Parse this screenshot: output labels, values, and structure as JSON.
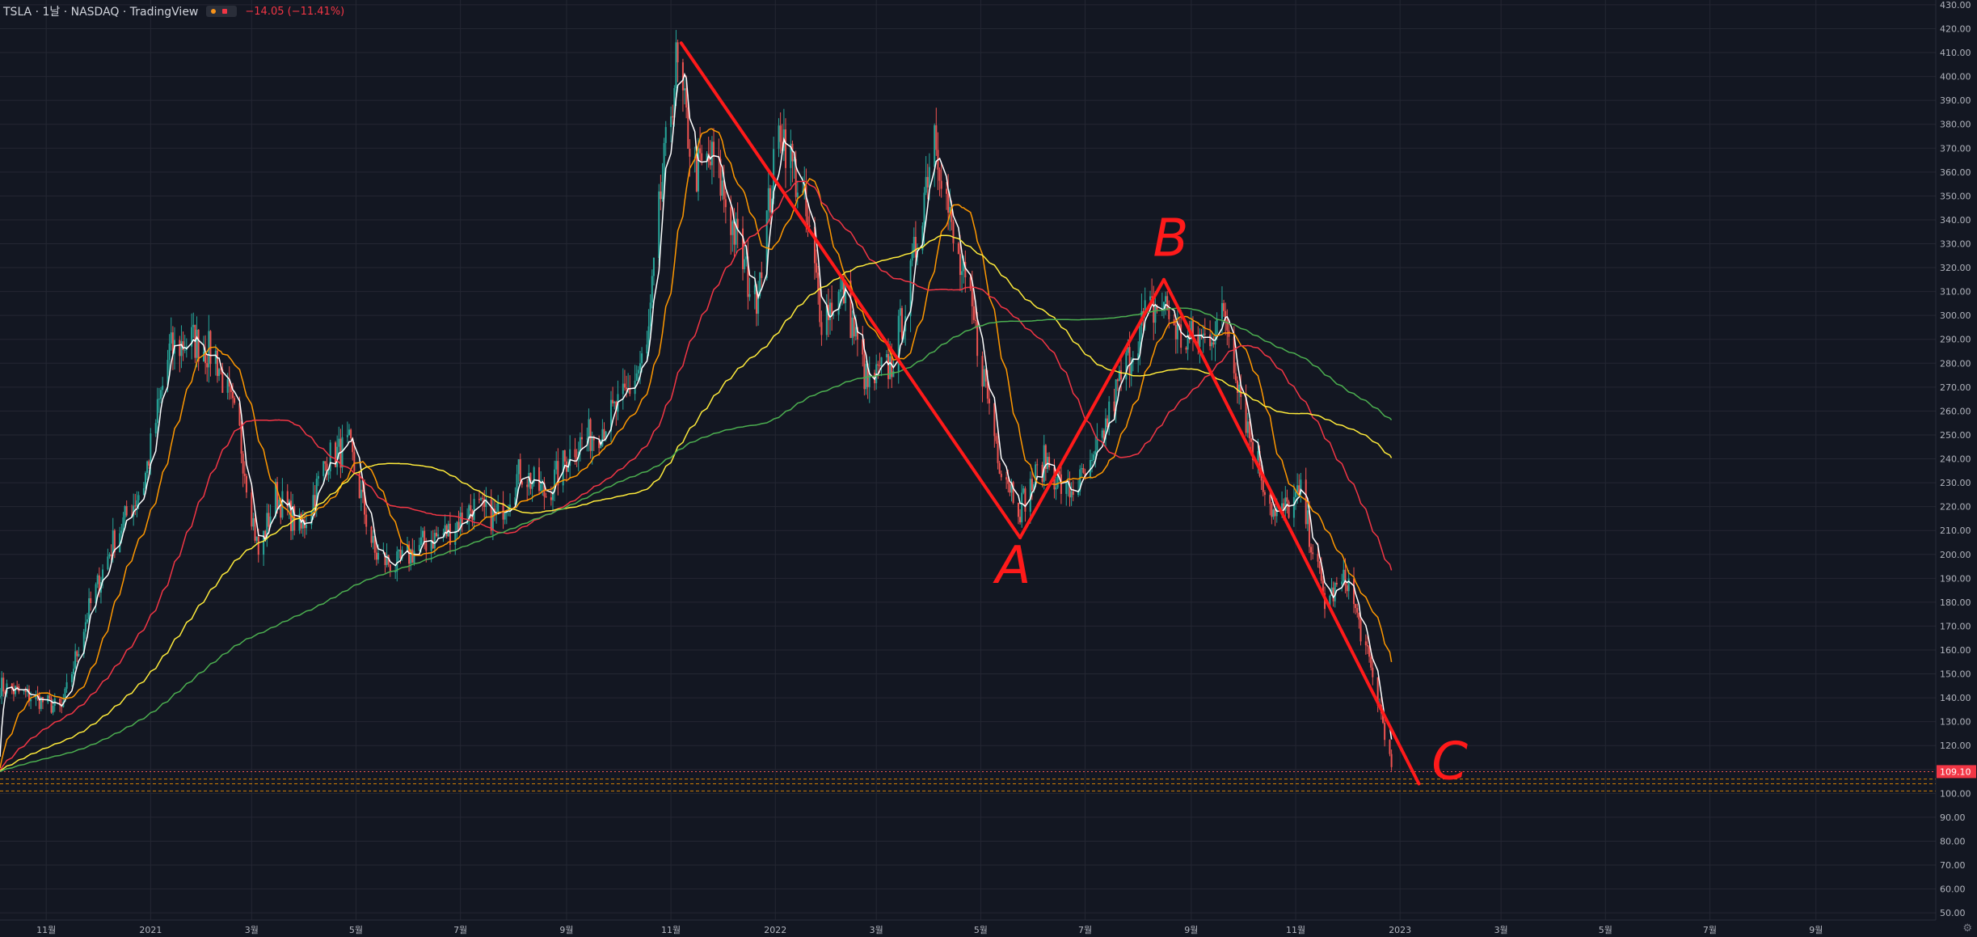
{
  "header": {
    "symbol_line": "TSLA · 1날 · NASDAQ · TradingView",
    "change": "−14.05 (−11.41%)"
  },
  "chart_data": {
    "type": "candlestick",
    "y_ticks": [
      50,
      60,
      70,
      80,
      90,
      100,
      110,
      120,
      130,
      140,
      150,
      160,
      170,
      180,
      190,
      200,
      210,
      220,
      230,
      240,
      250,
      260,
      270,
      280,
      290,
      300,
      310,
      320,
      330,
      340,
      350,
      360,
      370,
      380,
      390,
      400,
      410,
      420,
      430
    ],
    "y_tick_labels": [
      "50.00",
      "60.00",
      "70.00",
      "80.00",
      "90.00",
      "100.00",
      "110.00",
      "120.00",
      "130.00",
      "140.00",
      "150.00",
      "160.00",
      "170.00",
      "180.00",
      "190.00",
      "200.00",
      "210.00",
      "220.00",
      "230.00",
      "240.00",
      "250.00",
      "260.00",
      "270.00",
      "280.00",
      "290.00",
      "300.00",
      "310.00",
      "320.00",
      "330.00",
      "340.00",
      "350.00",
      "360.00",
      "370.00",
      "380.00",
      "390.00",
      "400.00",
      "410.00",
      "420.00",
      "430.00"
    ],
    "ylim": [
      47,
      432
    ],
    "x_ticks": [
      {
        "label": "11월",
        "date": "2020-11-01"
      },
      {
        "label": "2021",
        "date": "2021-01-01"
      },
      {
        "label": "3월",
        "date": "2021-03-01"
      },
      {
        "label": "5월",
        "date": "2021-05-01"
      },
      {
        "label": "7월",
        "date": "2021-07-01"
      },
      {
        "label": "9월",
        "date": "2021-09-01"
      },
      {
        "label": "11월",
        "date": "2021-11-01"
      },
      {
        "label": "2022",
        "date": "2022-01-01"
      },
      {
        "label": "3월",
        "date": "2022-03-01"
      },
      {
        "label": "5월",
        "date": "2022-05-01"
      },
      {
        "label": "7월",
        "date": "2022-07-01"
      },
      {
        "label": "9월",
        "date": "2022-09-01"
      },
      {
        "label": "11월",
        "date": "2022-11-01"
      },
      {
        "label": "2023",
        "date": "2023-01-01"
      },
      {
        "label": "3월",
        "date": "2023-03-01"
      },
      {
        "label": "5월",
        "date": "2023-05-01"
      },
      {
        "label": "7월",
        "date": "2023-07-01"
      },
      {
        "label": "9월",
        "date": "2023-09-01"
      }
    ],
    "xlim": [
      "2020-10-05",
      "2023-11-10"
    ],
    "price_path": [
      [
        "2020-10-05",
        145
      ],
      [
        "2020-10-25",
        140
      ],
      [
        "2020-11-10",
        135
      ],
      [
        "2020-11-25",
        175
      ],
      [
        "2020-12-10",
        205
      ],
      [
        "2020-12-28",
        230
      ],
      [
        "2021-01-12",
        285
      ],
      [
        "2021-01-25",
        290
      ],
      [
        "2021-02-08",
        283
      ],
      [
        "2021-02-22",
        250
      ],
      [
        "2021-03-05",
        200
      ],
      [
        "2021-03-15",
        225
      ],
      [
        "2021-03-30",
        210
      ],
      [
        "2021-04-14",
        240
      ],
      [
        "2021-04-27",
        245
      ],
      [
        "2021-05-12",
        200
      ],
      [
        "2021-05-24",
        195
      ],
      [
        "2021-06-10",
        205
      ],
      [
        "2021-06-25",
        210
      ],
      [
        "2021-07-08",
        220
      ],
      [
        "2021-07-22",
        215
      ],
      [
        "2021-08-05",
        235
      ],
      [
        "2021-08-20",
        225
      ],
      [
        "2021-09-05",
        245
      ],
      [
        "2021-09-20",
        252
      ],
      [
        "2021-10-05",
        265
      ],
      [
        "2021-10-18",
        285
      ],
      [
        "2021-10-26",
        350
      ],
      [
        "2021-11-04",
        405
      ],
      [
        "2021-11-15",
        360
      ],
      [
        "2021-11-26",
        365
      ],
      [
        "2021-12-08",
        335
      ],
      [
        "2021-12-20",
        305
      ],
      [
        "2021-12-30",
        355
      ],
      [
        "2022-01-04",
        380
      ],
      [
        "2022-01-18",
        345
      ],
      [
        "2022-01-28",
        300
      ],
      [
        "2022-02-10",
        310
      ],
      [
        "2022-02-24",
        270
      ],
      [
        "2022-03-10",
        280
      ],
      [
        "2022-03-20",
        310
      ],
      [
        "2022-04-04",
        380
      ],
      [
        "2022-04-15",
        330
      ],
      [
        "2022-04-26",
        300
      ],
      [
        "2022-05-12",
        240
      ],
      [
        "2022-05-24",
        220
      ],
      [
        "2022-06-08",
        240
      ],
      [
        "2022-06-20",
        225
      ],
      [
        "2022-07-05",
        235
      ],
      [
        "2022-07-20",
        270
      ],
      [
        "2022-08-05",
        300
      ],
      [
        "2022-08-16",
        305
      ],
      [
        "2022-08-26",
        290
      ],
      [
        "2022-09-08",
        290
      ],
      [
        "2022-09-21",
        300
      ],
      [
        "2022-10-05",
        250
      ],
      [
        "2022-10-20",
        215
      ],
      [
        "2022-11-04",
        225
      ],
      [
        "2022-11-18",
        180
      ],
      [
        "2022-12-01",
        190
      ],
      [
        "2022-12-12",
        160
      ],
      [
        "2022-12-22",
        130
      ],
      [
        "2022-12-27",
        110
      ]
    ],
    "moving_averages": [
      {
        "color": "#ffffff",
        "window": 5
      },
      {
        "color": "#ff9800",
        "window": 20
      },
      {
        "color": "#f23645",
        "window": 60
      },
      {
        "color": "#ffeb3b",
        "window": 120
      },
      {
        "color": "#4caf50",
        "window": 224
      }
    ],
    "last_price": {
      "value": 109.1,
      "label": "109.10"
    },
    "horizontal_levels": [
      106,
      104,
      101
    ],
    "annotations": {
      "abc_lines": [
        {
          "from": [
            "2021-11-07",
            414
          ],
          "to": [
            "2022-05-24",
            207
          ]
        },
        {
          "from": [
            "2022-05-24",
            207
          ],
          "to": [
            "2022-08-16",
            315
          ]
        },
        {
          "from": [
            "2022-08-16",
            315
          ],
          "to": [
            "2023-01-12",
            104
          ]
        }
      ],
      "labels": [
        {
          "text": "A",
          "date": "2022-05-20",
          "value": 188
        },
        {
          "text": "B",
          "date": "2022-08-20",
          "value": 325
        },
        {
          "text": "C",
          "date": "2023-01-30",
          "value": 106
        }
      ]
    },
    "colors": {
      "up": "#26a69a",
      "down": "#ef5350",
      "background": "#131722",
      "grid": "#242733",
      "annotation": "#ff1a1a"
    }
  }
}
